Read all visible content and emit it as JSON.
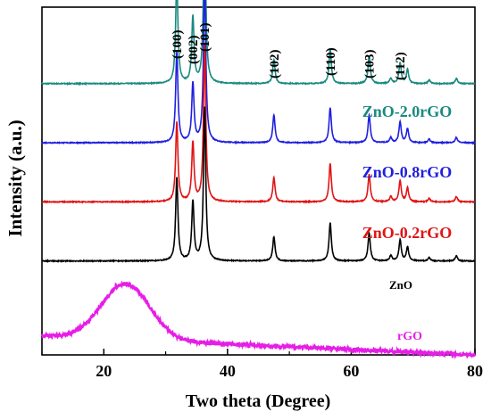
{
  "chart_data": {
    "type": "line",
    "title": "",
    "xlabel": "Two theta (Degree)",
    "ylabel": "Intensity (a.u.)",
    "xlim": [
      10,
      80
    ],
    "xticks": [
      20,
      40,
      60,
      80
    ],
    "yticks_shown": false,
    "grid": false,
    "legend": "none (series labeled inline beside each trace)",
    "peak_labels": [
      {
        "label": "(100)",
        "two_theta": 31.8
      },
      {
        "label": "(002)",
        "two_theta": 34.4
      },
      {
        "label": "(101)",
        "two_theta": 36.3
      },
      {
        "label": "(102)",
        "two_theta": 47.5
      },
      {
        "label": "(110)",
        "two_theta": 56.6
      },
      {
        "label": "(103)",
        "two_theta": 62.9
      },
      {
        "label": "(112)",
        "two_theta": 67.9
      }
    ],
    "series": [
      {
        "name": "ZnO-2.0rGO",
        "color": "#1a8a80",
        "baseline": 0.78,
        "peaks": [
          [
            31.8,
            0.3
          ],
          [
            34.4,
            0.19
          ],
          [
            36.3,
            0.48
          ],
          [
            47.5,
            0.07
          ],
          [
            56.6,
            0.1
          ],
          [
            62.9,
            0.08
          ],
          [
            66.4,
            0.015
          ],
          [
            67.9,
            0.06
          ],
          [
            69.1,
            0.04
          ],
          [
            72.6,
            0.01
          ],
          [
            77.0,
            0.015
          ]
        ]
      },
      {
        "name": "ZnO-0.8rGO",
        "color": "#1f1fe0",
        "baseline": 0.61,
        "peaks": [
          [
            31.8,
            0.26
          ],
          [
            34.4,
            0.17
          ],
          [
            36.3,
            0.47
          ],
          [
            47.5,
            0.08
          ],
          [
            56.6,
            0.1
          ],
          [
            62.9,
            0.08
          ],
          [
            66.4,
            0.015
          ],
          [
            67.9,
            0.06
          ],
          [
            69.1,
            0.04
          ],
          [
            72.6,
            0.01
          ],
          [
            77.0,
            0.015
          ]
        ]
      },
      {
        "name": "ZnO-0.2rGO",
        "color": "#e01414",
        "baseline": 0.44,
        "peaks": [
          [
            31.8,
            0.23
          ],
          [
            34.4,
            0.17
          ],
          [
            36.3,
            0.45
          ],
          [
            47.5,
            0.07
          ],
          [
            56.6,
            0.11
          ],
          [
            62.9,
            0.08
          ],
          [
            66.4,
            0.015
          ],
          [
            67.9,
            0.06
          ],
          [
            69.1,
            0.04
          ],
          [
            72.6,
            0.01
          ],
          [
            77.0,
            0.015
          ]
        ]
      },
      {
        "name": "ZnO",
        "color": "#000000",
        "baseline": 0.27,
        "peaks": [
          [
            31.8,
            0.24
          ],
          [
            34.4,
            0.17
          ],
          [
            36.3,
            0.44
          ],
          [
            47.5,
            0.07
          ],
          [
            56.6,
            0.11
          ],
          [
            62.9,
            0.08
          ],
          [
            66.4,
            0.015
          ],
          [
            67.9,
            0.06
          ],
          [
            69.1,
            0.04
          ],
          [
            72.6,
            0.01
          ],
          [
            77.0,
            0.015
          ]
        ]
      },
      {
        "name": "rGO",
        "color": "#e61ee6",
        "broad_peak": {
          "center": 23.5,
          "height": 0.16,
          "width": 5.5
        },
        "baseline_start": 0.055,
        "baseline_end": 0.0
      }
    ]
  }
}
